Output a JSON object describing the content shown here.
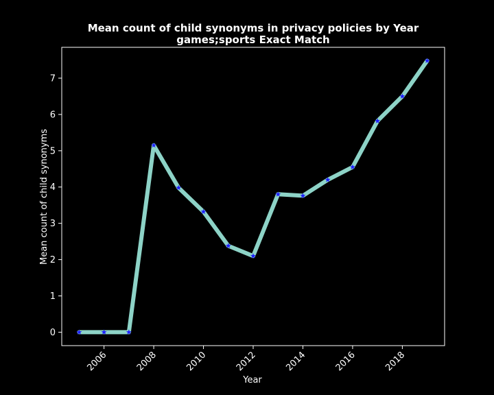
{
  "chart_data": {
    "type": "line",
    "title": "Mean count of child synonyms in privacy policies by Year",
    "subtitle": "games;sports Exact Match",
    "xlabel": "Year",
    "ylabel": "Mean count of child synonyms",
    "x": [
      2005,
      2006,
      2007,
      2008,
      2009,
      2010,
      2011,
      2012,
      2013,
      2014,
      2015,
      2016,
      2017,
      2018,
      2019
    ],
    "series": [
      {
        "values": [
          0,
          0,
          0,
          5.15,
          3.98,
          3.32,
          2.38,
          2.1,
          3.8,
          3.76,
          4.2,
          4.55,
          5.82,
          6.5,
          7.48
        ]
      }
    ],
    "xlim": [
      2004.3,
      2019.7
    ],
    "ylim": [
      -0.37,
      7.85
    ],
    "xticks": [
      2006,
      2008,
      2010,
      2012,
      2014,
      2016,
      2018
    ],
    "yticks": [
      0,
      1,
      2,
      3,
      4,
      5,
      6,
      7
    ],
    "grid": false,
    "legend": "none",
    "colors": {
      "background": "#000000",
      "line": "#8dd3c7",
      "marker": "#1f1fff",
      "axes": "#ffffff",
      "text": "#ffffff"
    }
  }
}
